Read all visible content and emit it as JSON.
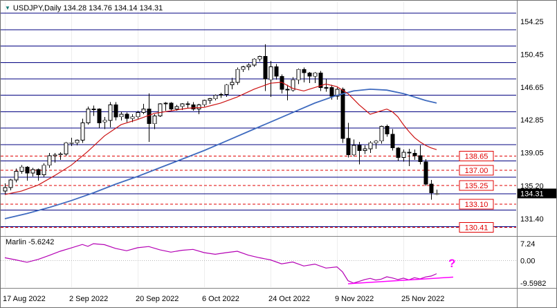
{
  "header": {
    "title": "USDJPY,Daily  134.28 134.76 134.14 134.31",
    "dropdown_icon": "▼"
  },
  "indicator_panel": {
    "label_text": "Marlin -5.6242"
  },
  "chart_data": {
    "type": "candlestick",
    "symbol": "USDJPY",
    "timeframe": "Daily",
    "navy_color": "#000080",
    "target_color": "#e00000",
    "ohlc": [
      [
        134.6,
        135.5,
        134.3,
        135.0
      ],
      [
        135.0,
        136.0,
        134.7,
        135.9
      ],
      [
        135.9,
        137.2,
        135.6,
        136.9
      ],
      [
        136.9,
        137.6,
        136.6,
        137.4
      ],
      [
        137.4,
        137.5,
        135.8,
        136.7
      ],
      [
        136.7,
        137.3,
        136.3,
        137.1
      ],
      [
        137.1,
        137.2,
        135.8,
        136.5
      ],
      [
        136.5,
        137.8,
        136.2,
        137.6
      ],
      [
        137.6,
        139.0,
        137.3,
        138.7
      ],
      [
        138.7,
        139.0,
        137.9,
        138.8
      ],
      [
        138.8,
        139.1,
        138.2,
        138.9
      ],
      [
        138.9,
        140.3,
        138.7,
        140.2
      ],
      [
        140.2,
        140.8,
        139.8,
        140.2
      ],
      [
        140.2,
        140.6,
        139.9,
        140.5
      ],
      [
        140.5,
        143.0,
        140.2,
        142.5
      ],
      [
        142.5,
        144.4,
        142.3,
        144.1
      ],
      [
        144.1,
        144.5,
        143.3,
        144.1
      ],
      [
        144.1,
        144.2,
        141.9,
        142.5
      ],
      [
        142.6,
        143.2,
        141.8,
        142.8
      ],
      [
        142.8,
        144.9,
        142.0,
        144.6
      ],
      [
        144.6,
        144.9,
        142.8,
        143.2
      ],
      [
        143.2,
        143.8,
        142.8,
        143.5
      ],
      [
        143.5,
        143.7,
        142.6,
        143.0
      ],
      [
        143.0,
        143.5,
        142.6,
        143.2
      ],
      [
        143.2,
        143.9,
        142.9,
        143.7
      ],
      [
        143.7,
        144.7,
        143.5,
        144.1
      ],
      [
        144.1,
        145.9,
        140.3,
        142.4
      ],
      [
        142.4,
        143.5,
        141.8,
        143.3
      ],
      [
        143.3,
        144.8,
        143.2,
        144.7
      ],
      [
        144.7,
        144.9,
        143.9,
        144.8
      ],
      [
        144.8,
        144.9,
        143.9,
        144.1
      ],
      [
        144.1,
        144.6,
        143.9,
        144.4
      ],
      [
        144.4,
        144.8,
        144.0,
        144.7
      ],
      [
        144.7,
        145.0,
        144.2,
        144.6
      ],
      [
        144.6,
        144.9,
        143.9,
        144.1
      ],
      [
        144.1,
        144.7,
        143.5,
        144.6
      ],
      [
        144.6,
        145.2,
        144.4,
        145.1
      ],
      [
        145.1,
        145.4,
        144.7,
        145.3
      ],
      [
        145.3,
        145.8,
        145.1,
        145.7
      ],
      [
        145.7,
        146.0,
        145.4,
        145.8
      ],
      [
        145.8,
        147.0,
        145.5,
        146.9
      ],
      [
        146.9,
        147.7,
        146.4,
        147.2
      ],
      [
        147.2,
        148.9,
        146.9,
        148.7
      ],
      [
        148.7,
        149.1,
        148.4,
        149.0
      ],
      [
        149.0,
        149.4,
        148.6,
        149.2
      ],
      [
        149.2,
        150.0,
        149.0,
        149.9
      ],
      [
        149.9,
        150.3,
        149.6,
        150.2
      ],
      [
        150.2,
        151.6,
        146.2,
        147.6
      ],
      [
        147.5,
        149.7,
        145.5,
        149.0
      ],
      [
        149.0,
        149.3,
        147.5,
        147.9
      ],
      [
        147.9,
        148.1,
        145.9,
        146.4
      ],
      [
        146.4,
        146.9,
        145.1,
        146.3
      ],
      [
        146.3,
        147.8,
        146.1,
        147.5
      ],
      [
        147.5,
        148.8,
        147.0,
        148.7
      ],
      [
        148.7,
        148.9,
        147.2,
        148.3
      ],
      [
        148.3,
        148.4,
        147.1,
        147.9
      ],
      [
        147.9,
        148.4,
        147.1,
        148.3
      ],
      [
        148.3,
        148.5,
        146.2,
        146.6
      ],
      [
        146.6,
        147.6,
        146.1,
        146.6
      ],
      [
        146.6,
        146.9,
        145.2,
        145.6
      ],
      [
        145.6,
        146.6,
        145.2,
        146.4
      ],
      [
        146.4,
        146.6,
        140.2,
        140.7
      ],
      [
        140.7,
        142.5,
        138.5,
        138.8
      ],
      [
        138.8,
        140.6,
        138.6,
        139.9
      ],
      [
        139.9,
        140.3,
        137.7,
        139.3
      ],
      [
        139.3,
        139.9,
        138.9,
        139.5
      ],
      [
        139.5,
        140.4,
        139.0,
        140.2
      ],
      [
        140.2,
        140.5,
        139.5,
        140.4
      ],
      [
        140.4,
        142.2,
        140.1,
        142.1
      ],
      [
        142.1,
        142.3,
        140.9,
        141.2
      ],
      [
        141.2,
        141.8,
        139.3,
        139.6
      ],
      [
        139.6,
        139.7,
        138.1,
        138.5
      ],
      [
        138.5,
        139.4,
        138.0,
        139.1
      ],
      [
        139.1,
        139.5,
        137.5,
        139.0
      ],
      [
        139.0,
        139.4,
        138.2,
        138.7
      ],
      [
        138.7,
        139.9,
        137.7,
        138.0
      ],
      [
        138.0,
        138.3,
        135.2,
        135.4
      ],
      [
        135.4,
        135.9,
        133.6,
        134.4
      ],
      [
        134.28,
        134.76,
        134.14,
        134.31
      ]
    ],
    "x_ticks": [
      {
        "index": 0,
        "label": "17 Aug 2022"
      },
      {
        "index": 12,
        "label": "2 Sep 2022"
      },
      {
        "index": 24,
        "label": "20 Sep 2022"
      },
      {
        "index": 36,
        "label": "6 Oct 2022"
      },
      {
        "index": 48,
        "label": "24 Oct 2022"
      },
      {
        "index": 60,
        "label": "9 Nov 2022"
      },
      {
        "index": 72,
        "label": "25 Nov 2022"
      }
    ],
    "price_axis_labels": [
      {
        "text": "154.25",
        "value": 154.25
      },
      {
        "text": "150.45",
        "value": 150.45
      },
      {
        "text": "146.65",
        "value": 146.65
      },
      {
        "text": "142.85",
        "value": 142.85
      },
      {
        "text": "139.05",
        "value": 139.05
      },
      {
        "text": "135.20",
        "value": 135.2
      },
      {
        "text": "131.40",
        "value": 131.4
      }
    ],
    "indicator_axis_labels": [
      {
        "text": "7.24",
        "value": 7.24
      },
      {
        "text": "0.00",
        "value": 0
      },
      {
        "text": "-9.5982",
        "value": -9.5982
      }
    ],
    "navy_levels": [
      155.2,
      153.3,
      151.4,
      149.5,
      147.6,
      145.7,
      143.8,
      141.9,
      140.0,
      138.1,
      136.2,
      134.3,
      132.4,
      130.5
    ],
    "target_levels": [
      {
        "text": "138.65",
        "value": 138.65
      },
      {
        "text": "137.00",
        "value": 137.0
      },
      {
        "text": "135.25",
        "value": 135.25
      },
      {
        "text": "133.10",
        "value": 133.1
      },
      {
        "text": "130.41",
        "value": 130.41
      }
    ],
    "current_price": 134.31,
    "current_price_text": "134.31",
    "ma_fast": {
      "color": "#cc1111",
      "points": [
        [
          0,
          134.2
        ],
        [
          3,
          134.6
        ],
        [
          6,
          135.3
        ],
        [
          9,
          136.4
        ],
        [
          12,
          137.6
        ],
        [
          15,
          139.2
        ],
        [
          18,
          141.0
        ],
        [
          21,
          142.3
        ],
        [
          24,
          142.9
        ],
        [
          27,
          143.6
        ],
        [
          30,
          143.9
        ],
        [
          33,
          144.2
        ],
        [
          36,
          144.3
        ],
        [
          39,
          144.8
        ],
        [
          42,
          145.5
        ],
        [
          45,
          146.4
        ],
        [
          48,
          147.1
        ],
        [
          50,
          147.2
        ],
        [
          52,
          146.5
        ],
        [
          54,
          146.2
        ],
        [
          56,
          146.6
        ],
        [
          58,
          147.0
        ],
        [
          60,
          146.7
        ],
        [
          62,
          145.9
        ],
        [
          64,
          144.6
        ],
        [
          66,
          143.5
        ],
        [
          68,
          143.9
        ],
        [
          69,
          144.1
        ],
        [
          70,
          143.8
        ],
        [
          71,
          143.2
        ],
        [
          72,
          142.3
        ],
        [
          73,
          141.5
        ],
        [
          74,
          140.8
        ],
        [
          75,
          140.3
        ],
        [
          76,
          139.9
        ],
        [
          77,
          139.6
        ],
        [
          78,
          139.4
        ]
      ]
    },
    "ma_slow": {
      "color": "#3f6bbf",
      "points": [
        [
          0,
          131.4
        ],
        [
          4,
          132.0
        ],
        [
          8,
          132.7
        ],
        [
          12,
          133.5
        ],
        [
          16,
          134.4
        ],
        [
          20,
          135.4
        ],
        [
          24,
          136.3
        ],
        [
          28,
          137.3
        ],
        [
          32,
          138.3
        ],
        [
          36,
          139.3
        ],
        [
          40,
          140.4
        ],
        [
          44,
          141.5
        ],
        [
          48,
          142.6
        ],
        [
          52,
          143.7
        ],
        [
          56,
          144.8
        ],
        [
          60,
          145.7
        ],
        [
          63,
          146.2
        ],
        [
          66,
          146.4
        ],
        [
          69,
          146.3
        ],
        [
          72,
          145.9
        ],
        [
          74,
          145.5
        ],
        [
          76,
          145.1
        ],
        [
          78,
          144.8
        ]
      ]
    },
    "indicator": {
      "name": "Marlin",
      "value": -5.6242,
      "color": "#b400b4",
      "points": [
        [
          0,
          1.2
        ],
        [
          2,
          0.3
        ],
        [
          4,
          -0.7
        ],
        [
          6,
          0.5
        ],
        [
          8,
          2.2
        ],
        [
          10,
          4.0
        ],
        [
          12,
          5.4
        ],
        [
          14,
          6.9
        ],
        [
          15,
          6.1
        ],
        [
          16,
          7.2
        ],
        [
          18,
          6.8
        ],
        [
          20,
          5.2
        ],
        [
          22,
          4.2
        ],
        [
          24,
          5.5
        ],
        [
          26,
          6.0
        ],
        [
          28,
          4.6
        ],
        [
          30,
          3.6
        ],
        [
          32,
          4.4
        ],
        [
          34,
          4.8
        ],
        [
          36,
          3.4
        ],
        [
          38,
          2.7
        ],
        [
          40,
          3.4
        ],
        [
          42,
          4.0
        ],
        [
          44,
          2.3
        ],
        [
          46,
          1.2
        ],
        [
          48,
          0.3
        ],
        [
          50,
          -1.4
        ],
        [
          52,
          -0.6
        ],
        [
          54,
          -2.3
        ],
        [
          56,
          -1.5
        ],
        [
          58,
          -3.2
        ],
        [
          60,
          -2.7
        ],
        [
          61,
          -4.8
        ],
        [
          62,
          -8.6
        ],
        [
          63,
          -9.6
        ],
        [
          64,
          -8.9
        ],
        [
          65,
          -8.1
        ],
        [
          66,
          -7.6
        ],
        [
          67,
          -8.3
        ],
        [
          68,
          -7.9
        ],
        [
          69,
          -6.9
        ],
        [
          70,
          -7.4
        ],
        [
          71,
          -8.1
        ],
        [
          72,
          -7.5
        ],
        [
          73,
          -8.2
        ],
        [
          74,
          -7.3
        ],
        [
          75,
          -7.8
        ],
        [
          76,
          -7.0
        ],
        [
          77,
          -6.6
        ],
        [
          78,
          -5.62
        ]
      ],
      "levels": [
        7.24,
        0.0,
        -9.5982
      ],
      "trendline": {
        "i1": 62,
        "v1": -9.9,
        "i2": 81,
        "v2": -7.05,
        "color": "#ff00ff"
      },
      "annotation": "?"
    }
  }
}
